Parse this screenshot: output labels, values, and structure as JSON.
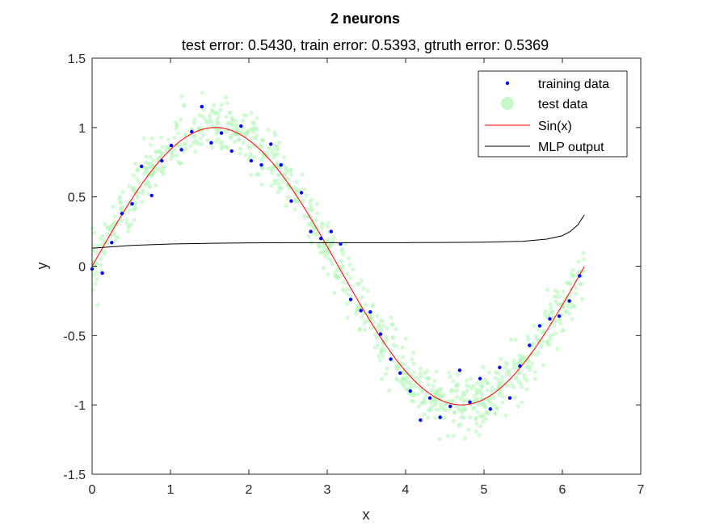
{
  "chart_data": {
    "type": "scatter",
    "title": "2 neurons",
    "subtitle": "test error: 0.5430, train error: 0.5393, gtruth error: 0.5369",
    "xlabel": "x",
    "ylabel": "y",
    "xlim": [
      0,
      7
    ],
    "ylim": [
      -1.5,
      1.5
    ],
    "xticks": [
      "0",
      "1",
      "2",
      "3",
      "4",
      "5",
      "6",
      "7"
    ],
    "yticks": [
      "1.5",
      "1",
      "0.5",
      "0",
      "-0.5",
      "-1",
      "-1.5"
    ],
    "grid": false,
    "legend_position": "top-right",
    "colors": {
      "training": "#0000ff",
      "test": "#b3f5b8",
      "sin": "#ff0000",
      "mlp": "#000000"
    },
    "series": [
      {
        "name": "training data",
        "kind": "points",
        "x": [
          0.0,
          0.13,
          0.25,
          0.38,
          0.51,
          0.63,
          0.76,
          0.89,
          1.01,
          1.14,
          1.27,
          1.4,
          1.52,
          1.65,
          1.78,
          1.9,
          2.03,
          2.16,
          2.28,
          2.41,
          2.54,
          2.67,
          2.79,
          2.92,
          3.05,
          3.17,
          3.3,
          3.43,
          3.55,
          3.68,
          3.81,
          3.93,
          4.06,
          4.19,
          4.31,
          4.44,
          4.57,
          4.69,
          4.82,
          4.95,
          5.08,
          5.2,
          5.33,
          5.46,
          5.58,
          5.71,
          5.84,
          5.96,
          6.09,
          6.22
        ],
        "y": [
          -0.02,
          -0.05,
          0.17,
          0.38,
          0.45,
          0.72,
          0.51,
          0.76,
          0.87,
          0.84,
          0.97,
          1.15,
          0.89,
          0.96,
          0.83,
          1.01,
          0.76,
          0.73,
          0.88,
          0.73,
          0.47,
          0.53,
          0.25,
          0.2,
          0.25,
          0.16,
          -0.24,
          -0.32,
          -0.33,
          -0.49,
          -0.67,
          -0.77,
          -0.9,
          -1.11,
          -0.95,
          -1.09,
          -1.01,
          -0.75,
          -0.98,
          -0.81,
          -1.03,
          -0.73,
          -0.95,
          -0.72,
          -0.57,
          -0.43,
          -0.38,
          -0.36,
          -0.25,
          -0.07
        ]
      },
      {
        "name": "test data",
        "kind": "points",
        "count": 1000,
        "noise_std": 0.1,
        "x_range": [
          0,
          6.28
        ]
      },
      {
        "name": "Sin(x)",
        "kind": "line",
        "function": "sin(x)",
        "x_range": [
          0,
          6.28
        ]
      },
      {
        "name": "MLP output",
        "kind": "line",
        "x": [
          0.0,
          0.5,
          1.0,
          1.5,
          2.0,
          2.5,
          3.0,
          3.5,
          4.0,
          4.5,
          5.0,
          5.5,
          5.8,
          6.0,
          6.1,
          6.2,
          6.28
        ],
        "y": [
          0.13,
          0.15,
          0.16,
          0.165,
          0.168,
          0.17,
          0.17,
          0.17,
          0.17,
          0.171,
          0.173,
          0.18,
          0.195,
          0.22,
          0.25,
          0.3,
          0.37
        ]
      }
    ]
  }
}
